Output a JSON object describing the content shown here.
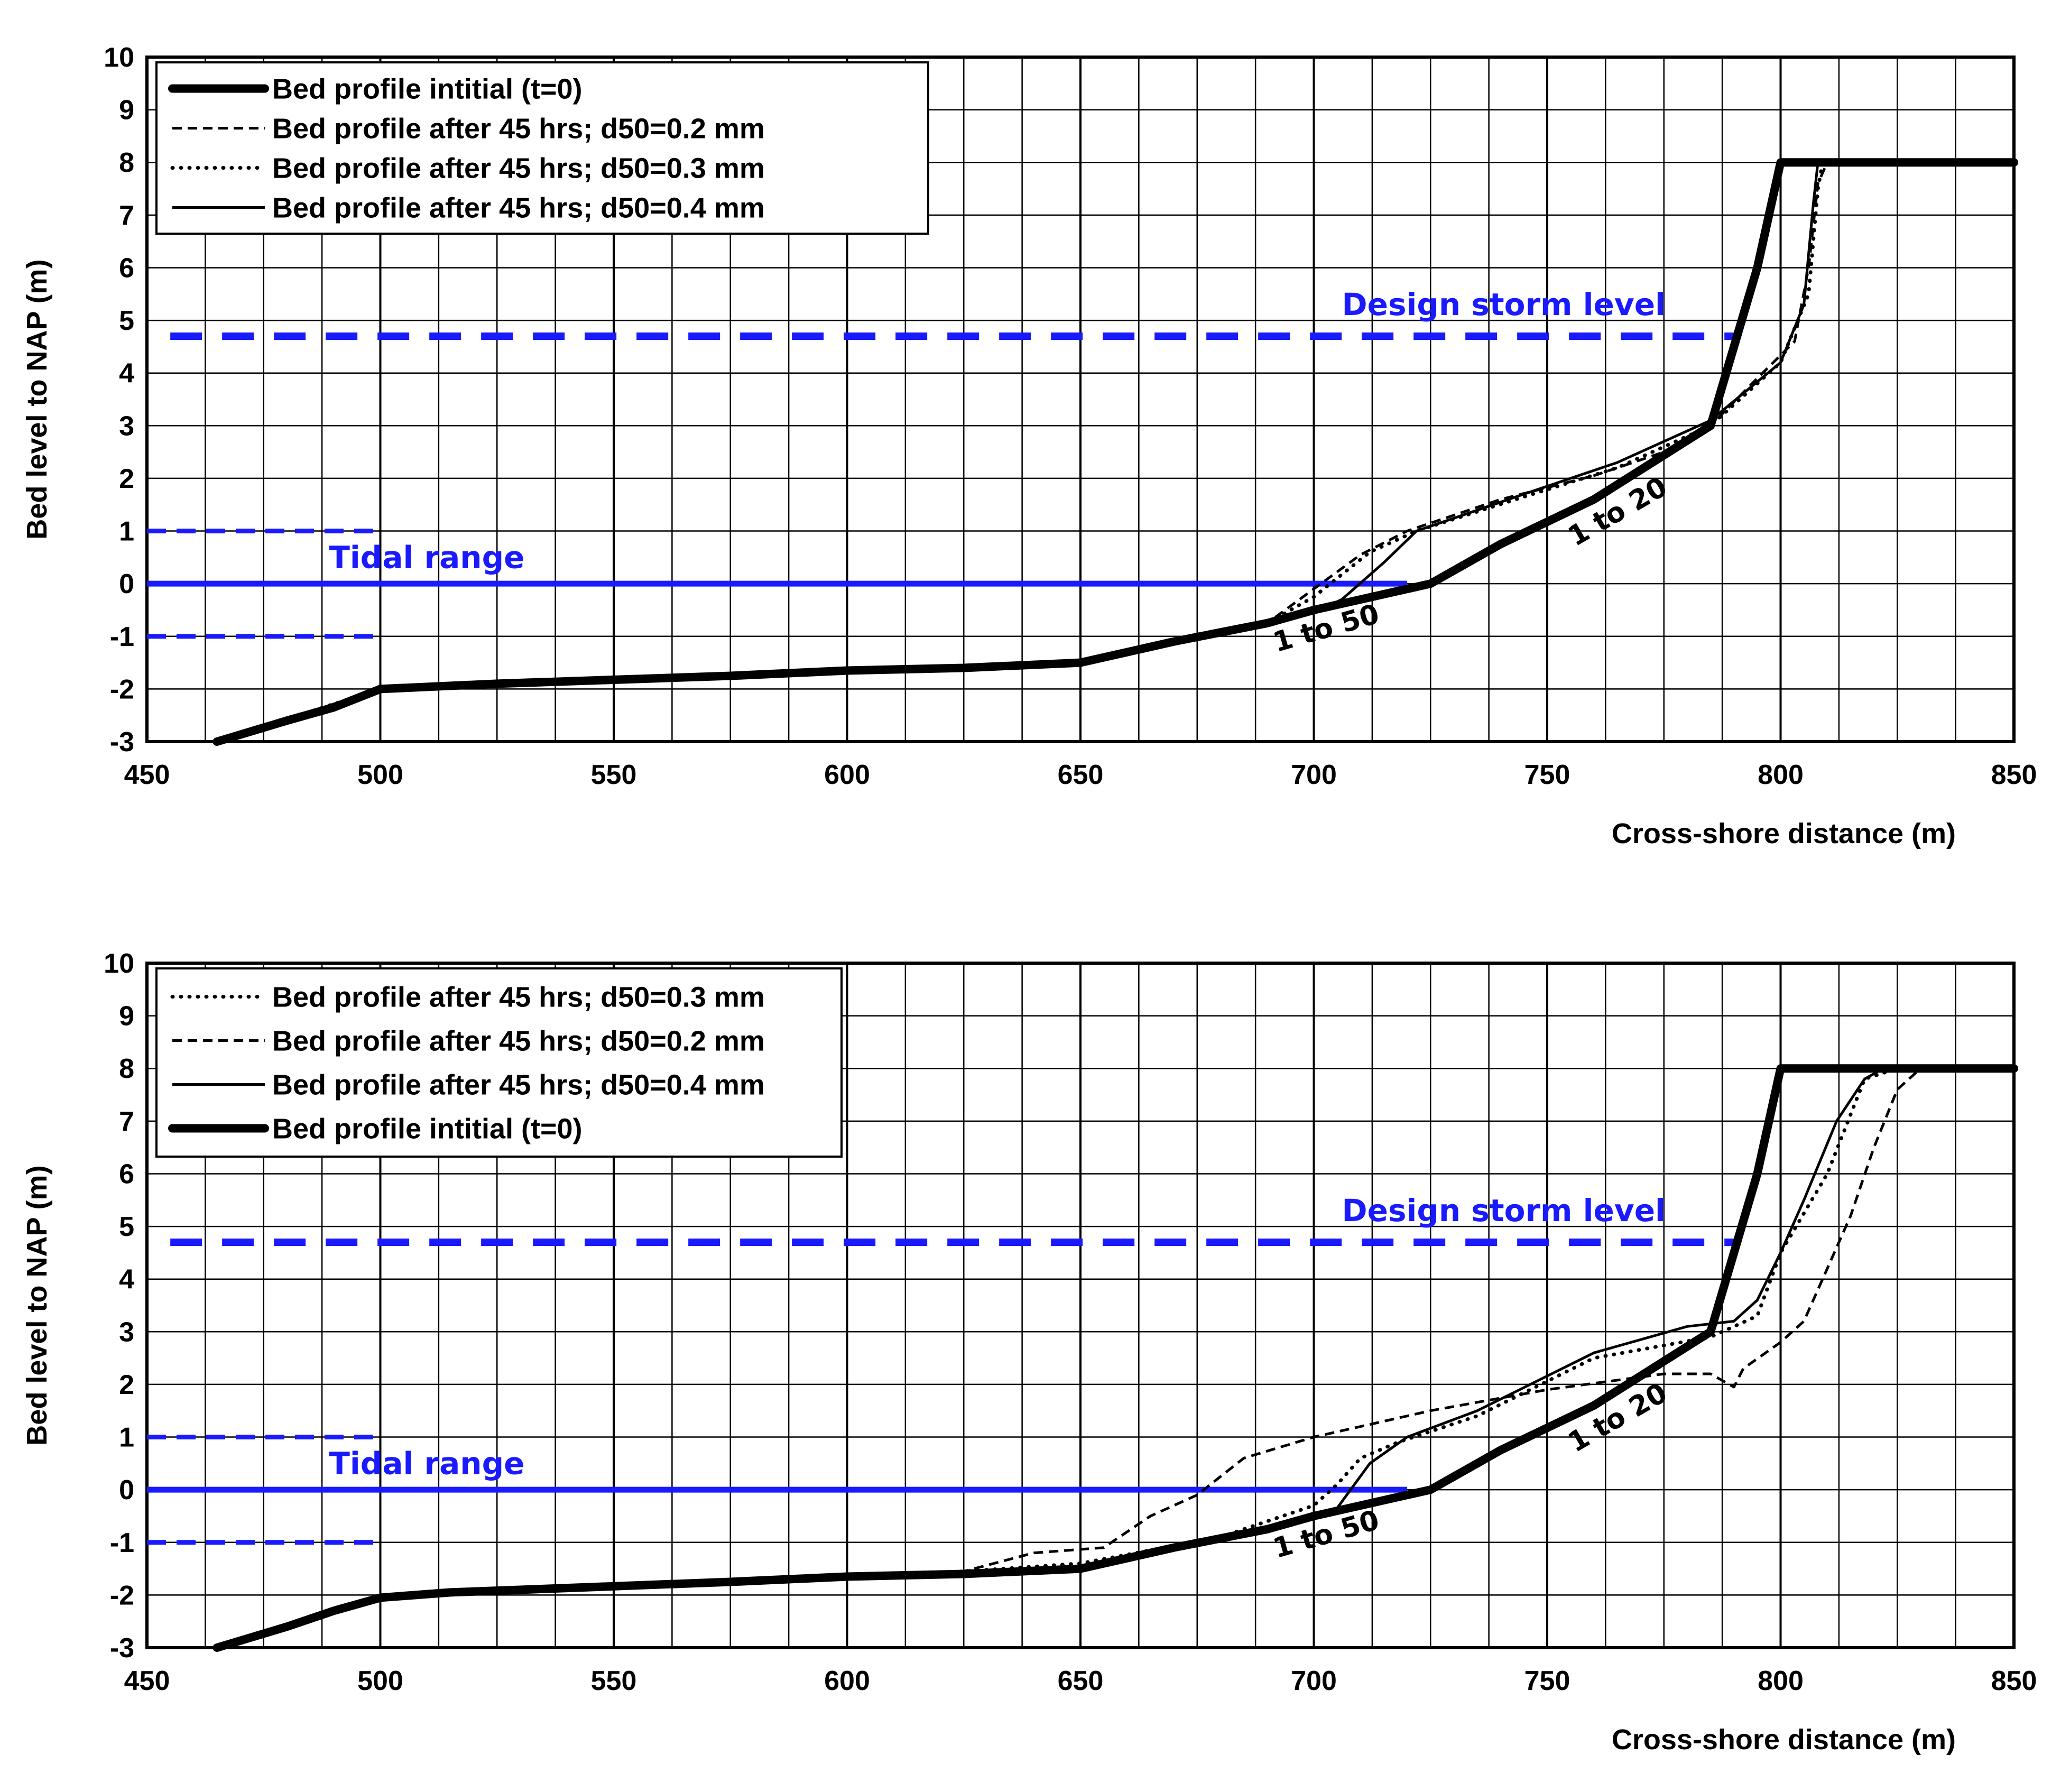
{
  "chart_data": [
    {
      "type": "line",
      "xlabel": "Cross-shore distance (m)",
      "ylabel": "Bed level to NAP (m)",
      "xlim": [
        450,
        850
      ],
      "ylim": [
        -3,
        10
      ],
      "x_ticks": [
        "450",
        "500",
        "550",
        "600",
        "650",
        "700",
        "750",
        "800",
        "850"
      ],
      "y_ticks": [
        "-3",
        "-2",
        "-1",
        "0",
        "1",
        "2",
        "3",
        "4",
        "5",
        "6",
        "7",
        "8",
        "9",
        "10"
      ],
      "grid": true,
      "legend_position": "top-left",
      "legend_order": [
        "initial",
        "d02",
        "d03",
        "d04"
      ],
      "series": [
        {
          "key": "initial",
          "name": "Bed profile intitial (t=0)",
          "style": "thick",
          "points": [
            [
              465,
              -3
            ],
            [
              480,
              -2.6
            ],
            [
              490,
              -2.35
            ],
            [
              500,
              -2
            ],
            [
              525,
              -1.9
            ],
            [
              575,
              -1.75
            ],
            [
              600,
              -1.65
            ],
            [
              625,
              -1.6
            ],
            [
              650,
              -1.5
            ],
            [
              670,
              -1.1
            ],
            [
              690,
              -0.75
            ],
            [
              700,
              -0.5
            ],
            [
              720,
              -0.1
            ],
            [
              725,
              0
            ],
            [
              740,
              0.75
            ],
            [
              760,
              1.6
            ],
            [
              785,
              3
            ],
            [
              795,
              6
            ],
            [
              800,
              8
            ],
            [
              850,
              8
            ]
          ]
        },
        {
          "key": "d02",
          "name": "Bed profile after 45 hrs; d50=0.2 mm",
          "style": "dashed",
          "points": [
            [
              465,
              -3
            ],
            [
              500,
              -2
            ],
            [
              600,
              -1.65
            ],
            [
              650,
              -1.5
            ],
            [
              690,
              -0.75
            ],
            [
              700,
              -0.1
            ],
            [
              710,
              0.55
            ],
            [
              720,
              1
            ],
            [
              740,
              1.6
            ],
            [
              760,
              2.05
            ],
            [
              775,
              2.5
            ],
            [
              785,
              3
            ],
            [
              795,
              3.9
            ],
            [
              803,
              4.6
            ],
            [
              806,
              6
            ],
            [
              808,
              7.6
            ],
            [
              810,
              8
            ],
            [
              850,
              8
            ]
          ]
        },
        {
          "key": "d03",
          "name": "Bed profile after 45 hrs; d50=0.3 mm",
          "style": "dotted",
          "points": [
            [
              465,
              -3
            ],
            [
              500,
              -2
            ],
            [
              600,
              -1.65
            ],
            [
              650,
              -1.5
            ],
            [
              690,
              -0.75
            ],
            [
              700,
              -0.25
            ],
            [
              712,
              0.6
            ],
            [
              722,
              1
            ],
            [
              745,
              1.65
            ],
            [
              765,
              2.2
            ],
            [
              785,
              3
            ],
            [
              800,
              4.2
            ],
            [
              806,
              5.5
            ],
            [
              808,
              7.5
            ],
            [
              809,
              8
            ],
            [
              850,
              8
            ]
          ]
        },
        {
          "key": "d04",
          "name": "Bed profile after 45 hrs; d50=0.4 mm",
          "style": "solid",
          "points": [
            [
              465,
              -3
            ],
            [
              500,
              -2
            ],
            [
              600,
              -1.65
            ],
            [
              650,
              -1.5
            ],
            [
              690,
              -0.75
            ],
            [
              700,
              -0.55
            ],
            [
              706,
              -0.3
            ],
            [
              715,
              0.4
            ],
            [
              722,
              1
            ],
            [
              745,
              1.7
            ],
            [
              765,
              2.3
            ],
            [
              785,
              3.1
            ],
            [
              800,
              4.2
            ],
            [
              805,
              5.3
            ],
            [
              807,
              7.2
            ],
            [
              808,
              8
            ],
            [
              850,
              8
            ]
          ]
        }
      ],
      "reference_lines": [
        {
          "label": "Design storm level",
          "y": 4.7,
          "x_range": [
            455,
            790
          ],
          "style": "blue-dashed-thick"
        },
        {
          "label": "Tidal range",
          "y": 0,
          "x_range": [
            450,
            720
          ],
          "style": "blue-solid"
        },
        {
          "y": 1,
          "x_range": [
            450,
            500
          ],
          "style": "blue-dashed"
        },
        {
          "y": -1,
          "x_range": [
            450,
            500
          ],
          "style": "blue-dashed"
        }
      ],
      "annotations": [
        {
          "text": "Design storm level",
          "x": 706,
          "y": 5.1
        },
        {
          "text": "Tidal range",
          "x": 489,
          "y": 0.3
        },
        {
          "text": "1 to 20",
          "x": 756,
          "y": 0.7,
          "rotate": -30
        },
        {
          "text": "1 to 50",
          "x": 692,
          "y": -1.3,
          "rotate": -16
        }
      ]
    },
    {
      "type": "line",
      "xlabel": "Cross-shore distance (m)",
      "ylabel": "Bed level to NAP (m)",
      "xlim": [
        450,
        850
      ],
      "ylim": [
        -3,
        10
      ],
      "x_ticks": [
        "450",
        "500",
        "550",
        "600",
        "650",
        "700",
        "750",
        "800",
        "850"
      ],
      "y_ticks": [
        "-3",
        "-2",
        "-1",
        "0",
        "1",
        "2",
        "3",
        "4",
        "5",
        "6",
        "7",
        "8",
        "9",
        "10"
      ],
      "grid": true,
      "legend_position": "top-left",
      "legend_order": [
        "d03",
        "d02",
        "d04",
        "initial"
      ],
      "series": [
        {
          "key": "initial",
          "name": "Bed profile intitial (t=0)",
          "style": "thick",
          "points": [
            [
              465,
              -3
            ],
            [
              480,
              -2.6
            ],
            [
              490,
              -2.3
            ],
            [
              500,
              -2.05
            ],
            [
              515,
              -1.95
            ],
            [
              575,
              -1.75
            ],
            [
              600,
              -1.65
            ],
            [
              625,
              -1.6
            ],
            [
              650,
              -1.5
            ],
            [
              670,
              -1.1
            ],
            [
              690,
              -0.75
            ],
            [
              700,
              -0.5
            ],
            [
              720,
              -0.1
            ],
            [
              725,
              0
            ],
            [
              740,
              0.75
            ],
            [
              760,
              1.6
            ],
            [
              785,
              3
            ],
            [
              795,
              6
            ],
            [
              800,
              8
            ],
            [
              850,
              8
            ]
          ]
        },
        {
          "key": "d03",
          "name": "Bed profile after 45 hrs; d50=0.3 mm",
          "style": "dotted",
          "points": [
            [
              465,
              -3
            ],
            [
              500,
              -2
            ],
            [
              600,
              -1.65
            ],
            [
              625,
              -1.55
            ],
            [
              650,
              -1.4
            ],
            [
              680,
              -0.9
            ],
            [
              700,
              -0.3
            ],
            [
              705,
              0.1
            ],
            [
              710,
              0.6
            ],
            [
              718,
              0.9
            ],
            [
              735,
              1.4
            ],
            [
              760,
              2.5
            ],
            [
              785,
              2.9
            ],
            [
              795,
              3.3
            ],
            [
              800,
              4.5
            ],
            [
              810,
              6
            ],
            [
              818,
              7.8
            ],
            [
              825,
              8
            ],
            [
              850,
              8
            ]
          ]
        },
        {
          "key": "d02",
          "name": "Bed profile after 45 hrs; d50=0.2 mm",
          "style": "dashed",
          "points": [
            [
              465,
              -3
            ],
            [
              500,
              -2
            ],
            [
              600,
              -1.65
            ],
            [
              625,
              -1.55
            ],
            [
              640,
              -1.2
            ],
            [
              655,
              -1.1
            ],
            [
              665,
              -0.5
            ],
            [
              675,
              -0.1
            ],
            [
              685,
              0.6
            ],
            [
              700,
              1
            ],
            [
              725,
              1.5
            ],
            [
              750,
              1.9
            ],
            [
              775,
              2.2
            ],
            [
              785,
              2.2
            ],
            [
              790,
              1.95
            ],
            [
              792,
              2.3
            ],
            [
              800,
              2.8
            ],
            [
              805,
              3.2
            ],
            [
              810,
              4.2
            ],
            [
              815,
              5.2
            ],
            [
              820,
              6.5
            ],
            [
              825,
              7.6
            ],
            [
              830,
              8
            ],
            [
              850,
              8
            ]
          ]
        },
        {
          "key": "d04",
          "name": "Bed profile after 45 hrs; d50=0.4 mm",
          "style": "solid",
          "points": [
            [
              465,
              -3
            ],
            [
              500,
              -2
            ],
            [
              600,
              -1.65
            ],
            [
              650,
              -1.5
            ],
            [
              690,
              -0.75
            ],
            [
              705,
              -0.35
            ],
            [
              712,
              0.5
            ],
            [
              720,
              1
            ],
            [
              735,
              1.5
            ],
            [
              760,
              2.6
            ],
            [
              780,
              3.1
            ],
            [
              790,
              3.2
            ],
            [
              795,
              3.6
            ],
            [
              800,
              4.5
            ],
            [
              805,
              5.5
            ],
            [
              812,
              7
            ],
            [
              818,
              7.8
            ],
            [
              822,
              8
            ],
            [
              850,
              8
            ]
          ]
        }
      ],
      "reference_lines": [
        {
          "label": "Design storm level",
          "y": 4.7,
          "x_range": [
            455,
            790
          ],
          "style": "blue-dashed-thick"
        },
        {
          "label": "Tidal range",
          "y": 0,
          "x_range": [
            450,
            720
          ],
          "style": "blue-solid"
        },
        {
          "y": 1,
          "x_range": [
            450,
            500
          ],
          "style": "blue-dashed"
        },
        {
          "y": -1,
          "x_range": [
            450,
            500
          ],
          "style": "blue-dashed"
        }
      ],
      "annotations": [
        {
          "text": "Design storm level",
          "x": 706,
          "y": 5.1
        },
        {
          "text": "Tidal range",
          "x": 489,
          "y": 0.3
        },
        {
          "text": "1 to 20",
          "x": 756,
          "y": 0.7,
          "rotate": -30
        },
        {
          "text": "1 to 50",
          "x": 692,
          "y": -1.3,
          "rotate": -16
        }
      ]
    }
  ],
  "colors": {
    "reference": "#1a1aff",
    "series": "#000000",
    "grid": "#000000"
  }
}
